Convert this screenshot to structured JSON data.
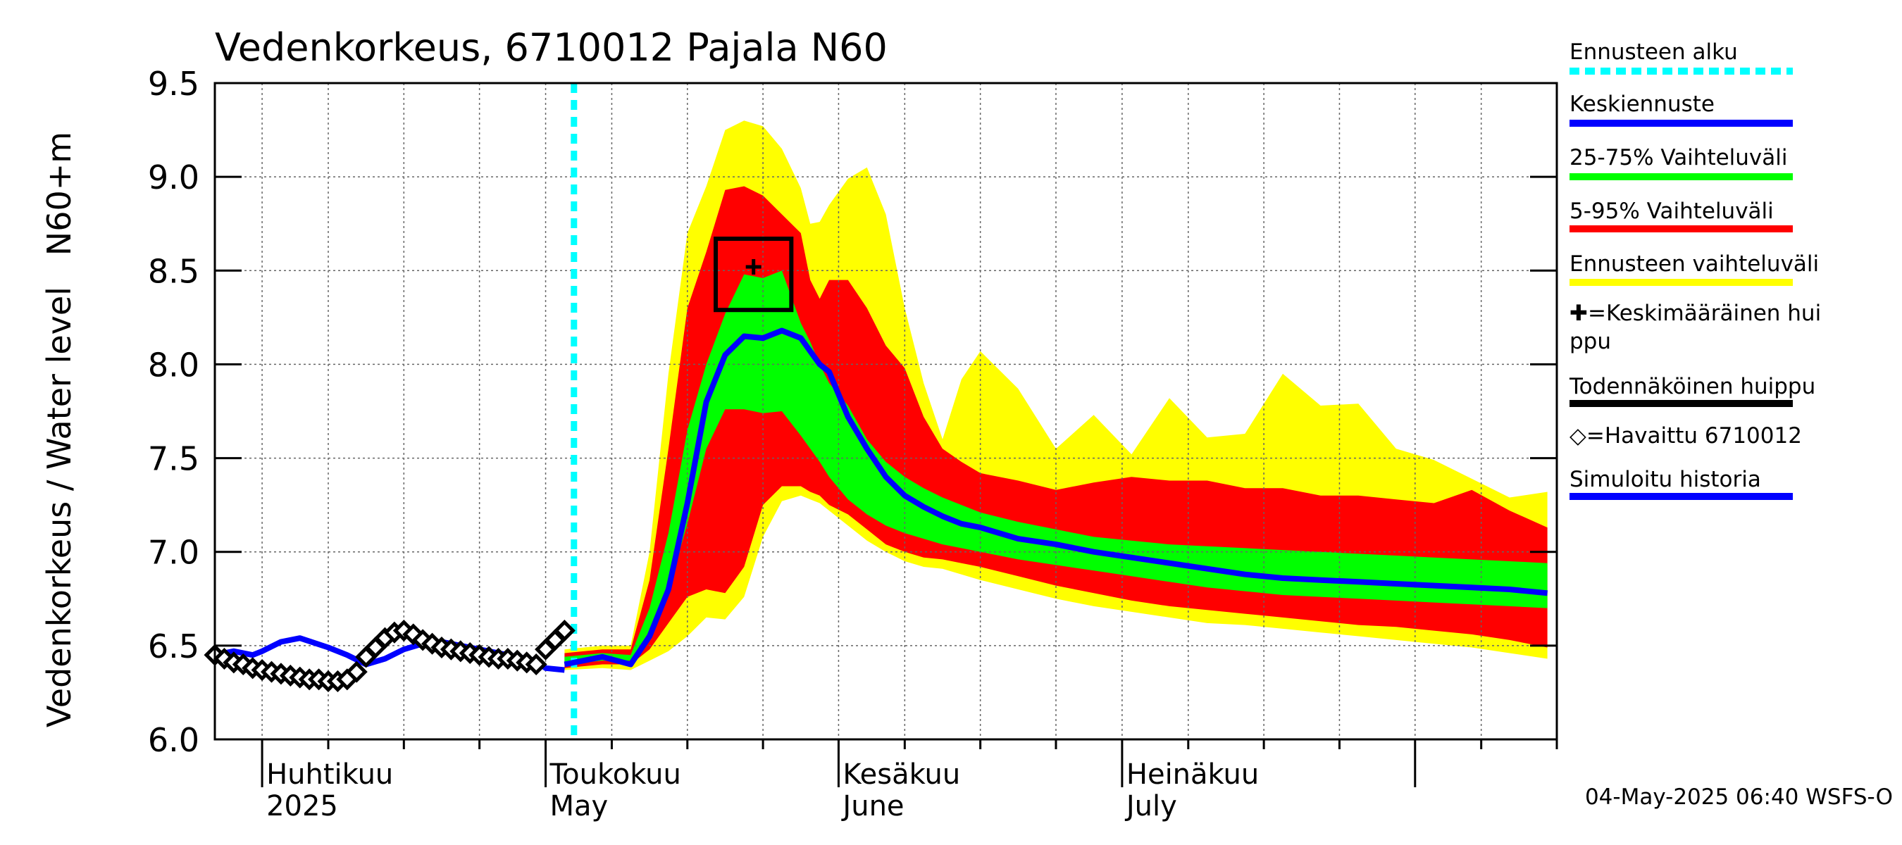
{
  "chart_data": {
    "type": "area",
    "title": "Vedenkorkeus, 6710012 Pajala N60",
    "ylabel": "Vedenkorkeus / Water level   N60+m",
    "ylim": [
      6.0,
      9.5
    ],
    "yticks": [
      "6.0",
      "6.5",
      "7.0",
      "7.5",
      "8.0",
      "8.5",
      "9.0",
      "9.5"
    ],
    "xlim": [
      "2025-03-27",
      "2025-08-16"
    ],
    "grid": true,
    "month_labels": [
      {
        "x": "2025-04-01",
        "line1": "Huhtikuu",
        "line2": "2025"
      },
      {
        "x": "2025-05-01",
        "line1": "Toukokuu",
        "line2": "May"
      },
      {
        "x": "2025-06-01",
        "line1": "Kesäkuu",
        "line2": "June"
      },
      {
        "x": "2025-07-01",
        "line1": "Heinäkuu",
        "line2": "July"
      }
    ],
    "forecast_start": "2025-05-04",
    "stamp": "04-May-2025 06:40 WSFS-O",
    "legend": [
      {
        "label": "Ennusteen alku",
        "color": "#00ffff",
        "style": "dotted"
      },
      {
        "label": "Keskiennuste",
        "color": "#0000ff",
        "style": "line"
      },
      {
        "label": "25-75% Vaihteluväli",
        "color": "#00ff00",
        "style": "line"
      },
      {
        "label": "5-95% Vaihteluväli",
        "color": "#ff0000",
        "style": "line"
      },
      {
        "label": "Ennusteen vaihteluväli",
        "color": "#ffff00",
        "style": "line"
      },
      {
        "label": "✚=Keskimääräinen huippu",
        "color": "#000000",
        "style": "none"
      },
      {
        "label": "Todennäköinen huippu",
        "color": "#000000",
        "style": "line"
      },
      {
        "label": "◇=Havaittu 6710012",
        "color": "#000000",
        "style": "none"
      },
      {
        "label": "Simuloitu historia",
        "color": "#0000ff",
        "style": "line"
      }
    ],
    "colors": {
      "p0_100": "#ffff00",
      "p5_95": "#ff0000",
      "p25_75": "#00ff00",
      "median": "#0000ff",
      "observed": "#000000",
      "forecast_start": "#00ffff"
    },
    "forecast_band": {
      "x": [
        "2025-05-03",
        "2025-05-07",
        "2025-05-10",
        "2025-05-12",
        "2025-05-14",
        "2025-05-16",
        "2025-05-18",
        "2025-05-20",
        "2025-05-22",
        "2025-05-24",
        "2025-05-26",
        "2025-05-28",
        "2025-05-29",
        "2025-05-30",
        "2025-05-31",
        "2025-06-02",
        "2025-06-04",
        "2025-06-06",
        "2025-06-08",
        "2025-06-10",
        "2025-06-12",
        "2025-06-14",
        "2025-06-16",
        "2025-06-20",
        "2025-06-24",
        "2025-06-28",
        "2025-07-02",
        "2025-07-06",
        "2025-07-10",
        "2025-07-14",
        "2025-07-18",
        "2025-07-22",
        "2025-07-26",
        "2025-07-30",
        "2025-08-03",
        "2025-08-07",
        "2025-08-11",
        "2025-08-15"
      ],
      "p0": [
        6.37,
        6.38,
        6.37,
        6.42,
        6.47,
        6.55,
        6.65,
        6.64,
        6.76,
        7.08,
        7.27,
        7.3,
        7.28,
        7.26,
        7.22,
        7.14,
        7.06,
        7.0,
        6.95,
        6.92,
        6.91,
        6.88,
        6.85,
        6.8,
        6.75,
        6.71,
        6.68,
        6.65,
        6.62,
        6.61,
        6.59,
        6.57,
        6.55,
        6.53,
        6.51,
        6.49,
        6.46,
        6.43
      ],
      "p5": [
        6.38,
        6.4,
        6.4,
        6.48,
        6.62,
        6.76,
        6.8,
        6.78,
        6.92,
        7.25,
        7.35,
        7.35,
        7.32,
        7.3,
        7.25,
        7.2,
        7.12,
        7.04,
        7.0,
        6.97,
        6.96,
        6.94,
        6.92,
        6.87,
        6.82,
        6.78,
        6.74,
        6.71,
        6.69,
        6.67,
        6.65,
        6.63,
        6.61,
        6.6,
        6.58,
        6.56,
        6.53,
        6.49
      ],
      "p25": [
        6.4,
        6.42,
        6.42,
        6.58,
        6.8,
        7.15,
        7.55,
        7.76,
        7.76,
        7.74,
        7.75,
        7.62,
        7.55,
        7.48,
        7.4,
        7.28,
        7.2,
        7.14,
        7.1,
        7.07,
        7.04,
        7.02,
        7.0,
        6.96,
        6.93,
        6.9,
        6.87,
        6.84,
        6.81,
        6.79,
        6.77,
        6.76,
        6.75,
        6.74,
        6.73,
        6.72,
        6.71,
        6.7
      ],
      "p75": [
        6.44,
        6.46,
        6.45,
        6.7,
        7.1,
        7.65,
        8.0,
        8.27,
        8.48,
        8.46,
        8.5,
        8.22,
        8.12,
        8.0,
        7.9,
        7.78,
        7.6,
        7.48,
        7.4,
        7.34,
        7.29,
        7.25,
        7.21,
        7.16,
        7.12,
        7.08,
        7.06,
        7.04,
        7.03,
        7.02,
        7.01,
        7.0,
        6.99,
        6.98,
        6.97,
        6.96,
        6.95,
        6.94
      ],
      "p95": [
        6.46,
        6.48,
        6.48,
        6.85,
        7.55,
        8.3,
        8.6,
        8.93,
        8.95,
        8.9,
        8.8,
        8.7,
        8.45,
        8.35,
        8.45,
        8.45,
        8.3,
        8.1,
        7.98,
        7.72,
        7.55,
        7.48,
        7.42,
        7.38,
        7.33,
        7.37,
        7.4,
        7.38,
        7.38,
        7.34,
        7.34,
        7.3,
        7.3,
        7.28,
        7.26,
        7.33,
        7.22,
        7.13
      ],
      "p100": [
        6.48,
        6.5,
        6.5,
        7.0,
        7.95,
        8.7,
        8.95,
        9.25,
        9.3,
        9.27,
        9.15,
        8.94,
        8.75,
        8.76,
        8.85,
        8.99,
        9.05,
        8.8,
        8.3,
        7.9,
        7.6,
        7.92,
        8.07,
        7.87,
        7.55,
        7.73,
        7.52,
        7.82,
        7.61,
        7.63,
        7.95,
        7.78,
        7.79,
        7.55,
        7.49,
        7.39,
        7.29,
        7.32
      ],
      "median": [
        6.4,
        6.44,
        6.4,
        6.55,
        6.8,
        7.26,
        7.8,
        8.05,
        8.15,
        8.14,
        8.18,
        8.14,
        8.07,
        8.0,
        7.96,
        7.72,
        7.55,
        7.4,
        7.3,
        7.24,
        7.19,
        7.15,
        7.13,
        7.07,
        7.04,
        7.0,
        6.97,
        6.94,
        6.91,
        6.88,
        6.86,
        6.85,
        6.84,
        6.83,
        6.82,
        6.81,
        6.8,
        6.78
      ]
    },
    "simulated_history": {
      "x": [
        "2025-03-27",
        "2025-03-29",
        "2025-03-31",
        "2025-04-01",
        "2025-04-03",
        "2025-04-05",
        "2025-04-08",
        "2025-04-10",
        "2025-04-12",
        "2025-04-14",
        "2025-04-16",
        "2025-04-18",
        "2025-04-20",
        "2025-04-22",
        "2025-04-24",
        "2025-04-26",
        "2025-04-28",
        "2025-04-30",
        "2025-05-01",
        "2025-05-03"
      ],
      "y": [
        6.45,
        6.47,
        6.45,
        6.47,
        6.52,
        6.54,
        6.49,
        6.45,
        6.4,
        6.43,
        6.48,
        6.51,
        6.52,
        6.5,
        6.48,
        6.46,
        6.44,
        6.42,
        6.38,
        6.37
      ]
    },
    "observed": {
      "x": [
        "2025-03-27",
        "2025-03-28",
        "2025-03-29",
        "2025-03-30",
        "2025-03-31",
        "2025-04-01",
        "2025-04-02",
        "2025-04-03",
        "2025-04-04",
        "2025-04-05",
        "2025-04-06",
        "2025-04-07",
        "2025-04-08",
        "2025-04-09",
        "2025-04-10",
        "2025-04-11",
        "2025-04-12",
        "2025-04-13",
        "2025-04-14",
        "2025-04-15",
        "2025-04-16",
        "2025-04-17",
        "2025-04-18",
        "2025-04-19",
        "2025-04-20",
        "2025-04-21",
        "2025-04-22",
        "2025-04-23",
        "2025-04-24",
        "2025-04-25",
        "2025-04-26",
        "2025-04-27",
        "2025-04-28",
        "2025-04-29",
        "2025-04-30",
        "2025-05-01",
        "2025-05-02",
        "2025-05-03"
      ],
      "y": [
        6.45,
        6.43,
        6.41,
        6.4,
        6.38,
        6.37,
        6.36,
        6.35,
        6.34,
        6.33,
        6.32,
        6.32,
        6.31,
        6.31,
        6.32,
        6.36,
        6.44,
        6.49,
        6.54,
        6.57,
        6.58,
        6.56,
        6.53,
        6.51,
        6.49,
        6.48,
        6.47,
        6.46,
        6.45,
        6.44,
        6.43,
        6.43,
        6.42,
        6.41,
        6.4,
        6.48,
        6.53,
        6.58
      ]
    },
    "mean_peak": {
      "x": "2025-05-23",
      "y": 8.52
    },
    "probable_peak_box": {
      "x0": "2025-05-19",
      "x1": "2025-05-27",
      "y0": 8.29,
      "y1": 8.67
    }
  }
}
